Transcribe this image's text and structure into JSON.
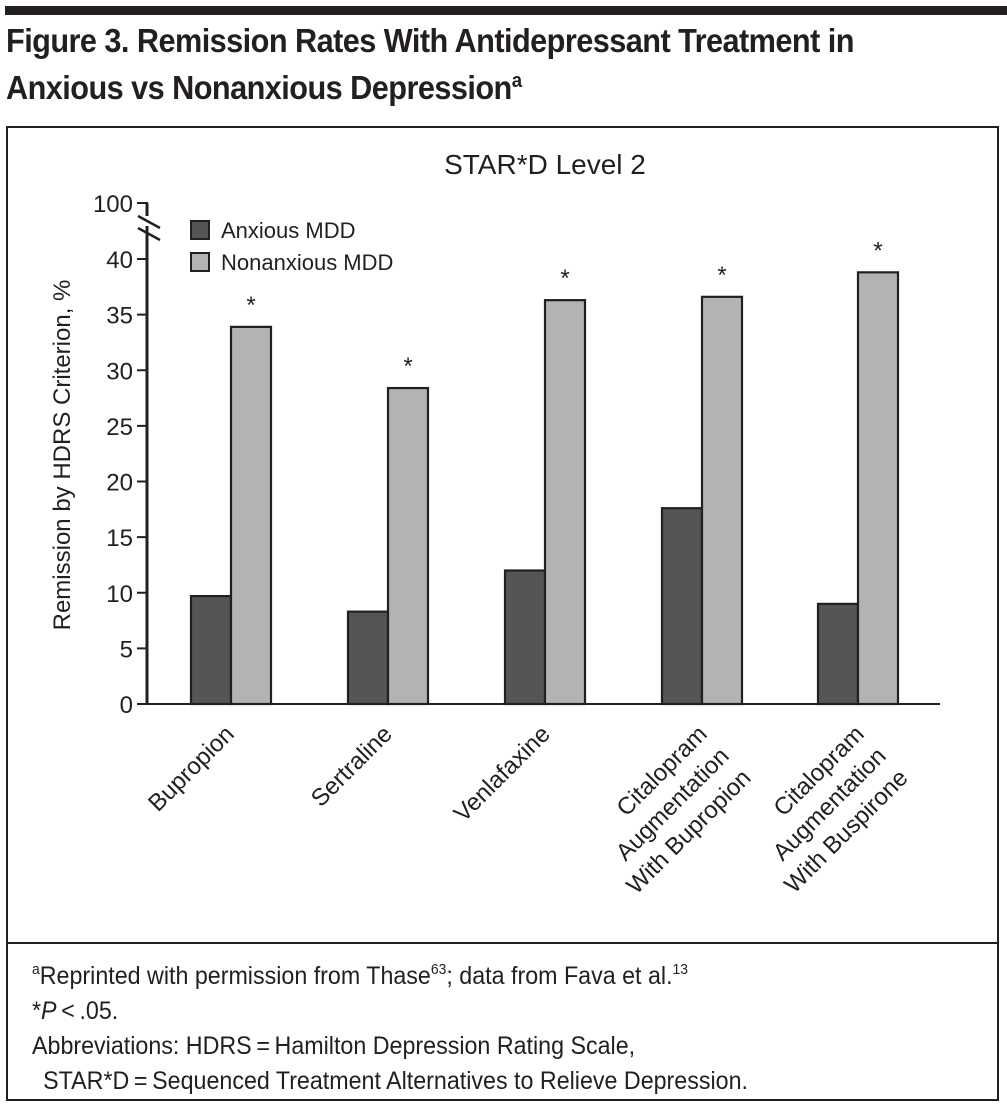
{
  "figure": {
    "title": "Figure 3. Remission Rates With Antidepressant Treatment in Anxious vs Nonanxious Depression",
    "title_line1": "Figure 3. Remission Rates With Antidepressant Treatment in",
    "title_line2": "Anxious vs Nonanxious Depression",
    "title_superscript": "a"
  },
  "chart_data": {
    "type": "bar",
    "title": "STAR*D Level 2",
    "xlabel": "",
    "ylabel": "Remission by HDRS Criterion, %",
    "ylim": [
      0,
      40
    ],
    "axis_break": {
      "upper_label": "100",
      "break_between": [
        40,
        100
      ]
    },
    "yticks": [
      0,
      5,
      10,
      15,
      20,
      25,
      30,
      35,
      40
    ],
    "ytick_labels": [
      "0",
      "5",
      "10",
      "15",
      "20",
      "25",
      "30",
      "35",
      "40"
    ],
    "grid": false,
    "legend_position": "top-left",
    "categories": [
      [
        "Bupropion"
      ],
      [
        "Sertraline"
      ],
      [
        "Venlafaxine"
      ],
      [
        "Citalopram",
        "Augmentation",
        "With Bupropion"
      ],
      [
        "Citalopram",
        "Augmentation",
        "With Buspirone"
      ]
    ],
    "series": [
      {
        "name": "Anxious MDD",
        "color": "#555555",
        "values": [
          9.7,
          8.3,
          12.0,
          17.6,
          9.0
        ]
      },
      {
        "name": "Nonanxious MDD",
        "color": "#b3b3b3",
        "values": [
          33.9,
          28.4,
          36.3,
          36.6,
          38.8
        ]
      }
    ],
    "significance_markers": [
      "*",
      "*",
      "*",
      "*",
      "*"
    ]
  },
  "notes": {
    "line1_sup_a": "a",
    "line1_text_a": "Reprinted with permission from Thase",
    "line1_sup_ref1": "63",
    "line1_text_b": "; data from Fava et al.",
    "line1_sup_ref2": "13",
    "line2_star": "*",
    "line2_p": "P",
    "line2_rest": " < .05.",
    "line3": "Abbreviations: HDRS = Hamilton Depression Rating Scale,",
    "line4": "STAR*D = Sequenced Treatment Alternatives to Relieve Depression."
  }
}
